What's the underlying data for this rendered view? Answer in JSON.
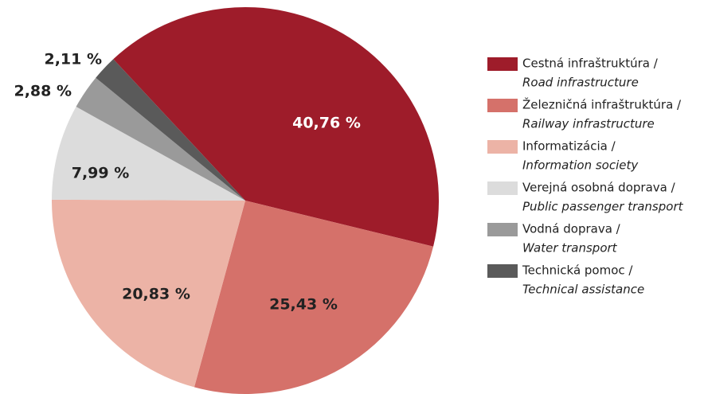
{
  "chart_data": {
    "type": "pie",
    "categories": [
      "Cestná infraštruktúra /",
      "Železničná infraštruktúra /",
      "Informatizácia /",
      "Verejná osobná doprava /",
      "Vodná doprava /",
      "Technická pomoc /"
    ],
    "categories_en": [
      "Road infrastructure",
      "Railway infrastructure",
      "Information society",
      "Public passenger transport",
      "Water transport",
      "Technical assistance"
    ],
    "values": [
      40.76,
      25.43,
      20.83,
      7.99,
      2.88,
      2.11
    ],
    "value_labels": [
      "40,76 %",
      "25,43 %",
      "20,83 %",
      "7,99 %",
      "2,88 %",
      "2,11 %"
    ],
    "colors": [
      "#9e1c2a",
      "#d5716a",
      "#ecb3a6",
      "#dcdcdc",
      "#9a9a9a",
      "#5a5a5a"
    ]
  }
}
